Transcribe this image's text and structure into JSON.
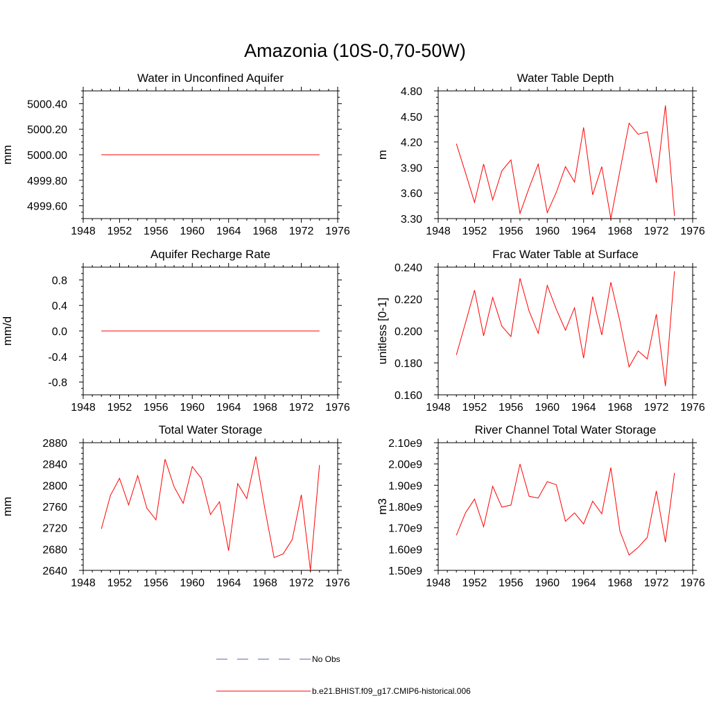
{
  "figure_title": "Amazonia (10S-0,70-50W)",
  "colors": {
    "model": "#ff0000",
    "obs": "#5566aa",
    "axis": "#000000"
  },
  "legend": {
    "obs_label": "No Obs",
    "model_label": "b.e21.BHIST.f09_g17.CMIP6-historical.006"
  },
  "chart_data": [
    {
      "type": "line",
      "title": "Water in Unconfined Aquifer",
      "xlabel": "",
      "ylabel": "mm",
      "xlim": [
        1948,
        1976
      ],
      "ylim": [
        4999.5,
        5000.5
      ],
      "xticks": [
        1948,
        1952,
        1956,
        1960,
        1964,
        1968,
        1972,
        1976
      ],
      "xtick_labels": [
        "1948",
        "1952",
        "1956",
        "1960",
        "1964",
        "1968",
        "1972",
        "1976"
      ],
      "yticks": [
        4999.6,
        4999.8,
        5000.0,
        5000.2,
        5000.4
      ],
      "ytick_labels": [
        "4999.60",
        "4999.80",
        "5000.00",
        "5000.20",
        "5000.40"
      ],
      "x": [
        1950,
        1974
      ],
      "y": [
        5000.0,
        5000.0
      ]
    },
    {
      "type": "line",
      "title": "Water Table Depth",
      "xlabel": "",
      "ylabel": "m",
      "xlim": [
        1948,
        1976
      ],
      "ylim": [
        3.3,
        4.8
      ],
      "xticks": [
        1948,
        1952,
        1956,
        1960,
        1964,
        1968,
        1972,
        1976
      ],
      "xtick_labels": [
        "1948",
        "1952",
        "1956",
        "1960",
        "1964",
        "1968",
        "1972",
        "1976"
      ],
      "yticks": [
        3.3,
        3.6,
        3.9,
        4.2,
        4.5,
        4.8
      ],
      "ytick_labels": [
        "3.30",
        "3.60",
        "3.90",
        "4.20",
        "4.50",
        "4.80"
      ],
      "x": [
        1950,
        1951,
        1952,
        1953,
        1954,
        1955,
        1956,
        1957,
        1958,
        1959,
        1960,
        1961,
        1962,
        1963,
        1964,
        1965,
        1966,
        1967,
        1968,
        1969,
        1970,
        1971,
        1972,
        1973,
        1974
      ],
      "y": [
        4.18,
        3.84,
        3.49,
        3.94,
        3.52,
        3.86,
        3.99,
        3.36,
        3.66,
        3.94,
        3.37,
        3.61,
        3.91,
        3.73,
        4.37,
        3.58,
        3.91,
        3.3,
        3.86,
        4.42,
        4.29,
        4.32,
        3.72,
        4.63,
        3.33
      ]
    },
    {
      "type": "line",
      "title": "Aquifer Recharge Rate",
      "xlabel": "",
      "ylabel": "mm/d",
      "xlim": [
        1948,
        1976
      ],
      "ylim": [
        -1.0,
        1.0
      ],
      "xticks": [
        1948,
        1952,
        1956,
        1960,
        1964,
        1968,
        1972,
        1976
      ],
      "xtick_labels": [
        "1948",
        "1952",
        "1956",
        "1960",
        "1964",
        "1968",
        "1972",
        "1976"
      ],
      "yticks": [
        -0.8,
        -0.4,
        0.0,
        0.4,
        0.8
      ],
      "ytick_labels": [
        "-0.8",
        "-0.4",
        "0.0",
        "0.4",
        "0.8"
      ],
      "x": [
        1950,
        1974
      ],
      "y": [
        0.0,
        0.0
      ]
    },
    {
      "type": "line",
      "title": "Frac Water Table at Surface",
      "xlabel": "",
      "ylabel": "unitless [0-1]",
      "xlim": [
        1948,
        1976
      ],
      "ylim": [
        0.16,
        0.24
      ],
      "xticks": [
        1948,
        1952,
        1956,
        1960,
        1964,
        1968,
        1972,
        1976
      ],
      "xtick_labels": [
        "1948",
        "1952",
        "1956",
        "1960",
        "1964",
        "1968",
        "1972",
        "1976"
      ],
      "yticks": [
        0.16,
        0.18,
        0.2,
        0.22,
        0.24
      ],
      "ytick_labels": [
        "0.160",
        "0.180",
        "0.200",
        "0.220",
        "0.240"
      ],
      "x": [
        1950,
        1951,
        1952,
        1953,
        1954,
        1955,
        1956,
        1957,
        1958,
        1959,
        1960,
        1961,
        1962,
        1963,
        1964,
        1965,
        1966,
        1967,
        1968,
        1969,
        1970,
        1971,
        1972,
        1973,
        1974
      ],
      "y": [
        0.185,
        0.205,
        0.2255,
        0.197,
        0.221,
        0.203,
        0.1965,
        0.233,
        0.2125,
        0.1985,
        0.2285,
        0.2135,
        0.2005,
        0.2145,
        0.183,
        0.2215,
        0.1975,
        0.2305,
        0.206,
        0.1775,
        0.1875,
        0.1825,
        0.2105,
        0.1655,
        0.2375
      ]
    },
    {
      "type": "line",
      "title": "Total Water Storage",
      "xlabel": "",
      "ylabel": "mm",
      "xlim": [
        1948,
        1976
      ],
      "ylim": [
        2640,
        2880
      ],
      "xticks": [
        1948,
        1952,
        1956,
        1960,
        1964,
        1968,
        1972,
        1976
      ],
      "xtick_labels": [
        "1948",
        "1952",
        "1956",
        "1960",
        "1964",
        "1968",
        "1972",
        "1976"
      ],
      "yticks": [
        2640,
        2680,
        2720,
        2760,
        2800,
        2840,
        2880
      ],
      "ytick_labels": [
        "2640",
        "2680",
        "2720",
        "2760",
        "2800",
        "2840",
        "2880"
      ],
      "x": [
        1950,
        1951,
        1952,
        1953,
        1954,
        1955,
        1956,
        1957,
        1958,
        1959,
        1960,
        1961,
        1962,
        1963,
        1964,
        1965,
        1966,
        1967,
        1968,
        1969,
        1970,
        1971,
        1972,
        1973,
        1974
      ],
      "y": [
        2718,
        2781,
        2813,
        2763,
        2818,
        2757,
        2735,
        2849,
        2797,
        2766,
        2835,
        2813,
        2745,
        2769,
        2677,
        2803,
        2775,
        2854,
        2755,
        2664,
        2671,
        2698,
        2782,
        2640,
        2838
      ]
    },
    {
      "type": "line",
      "title": "River Channel Total Water Storage",
      "xlabel": "",
      "ylabel": "m3",
      "xlim": [
        1948,
        1976
      ],
      "ylim": [
        1500000000.0,
        2100000000.0
      ],
      "xticks": [
        1948,
        1952,
        1956,
        1960,
        1964,
        1968,
        1972,
        1976
      ],
      "xtick_labels": [
        "1948",
        "1952",
        "1956",
        "1960",
        "1964",
        "1968",
        "1972",
        "1976"
      ],
      "yticks": [
        1500000000.0,
        1600000000.0,
        1700000000.0,
        1800000000.0,
        1900000000.0,
        2000000000.0,
        2100000000.0
      ],
      "ytick_labels": [
        "1.50e9",
        "1.60e9",
        "1.70e9",
        "1.80e9",
        "1.90e9",
        "2.00e9",
        "2.10e9"
      ],
      "x": [
        1950,
        1951,
        1952,
        1953,
        1954,
        1955,
        1956,
        1957,
        1958,
        1959,
        1960,
        1961,
        1962,
        1963,
        1964,
        1965,
        1966,
        1967,
        1968,
        1969,
        1970,
        1971,
        1972,
        1973,
        1974
      ],
      "y": [
        1665000000.0,
        1770000000.0,
        1835000000.0,
        1705000000.0,
        1895000000.0,
        1797000000.0,
        1807000000.0,
        2000000000.0,
        1848000000.0,
        1840000000.0,
        1917000000.0,
        1902000000.0,
        1731000000.0,
        1770000000.0,
        1718000000.0,
        1825000000.0,
        1766000000.0,
        1983000000.0,
        1685000000.0,
        1572000000.0,
        1608000000.0,
        1655000000.0,
        1873000000.0,
        1632000000.0,
        1958000000.0
      ]
    }
  ]
}
